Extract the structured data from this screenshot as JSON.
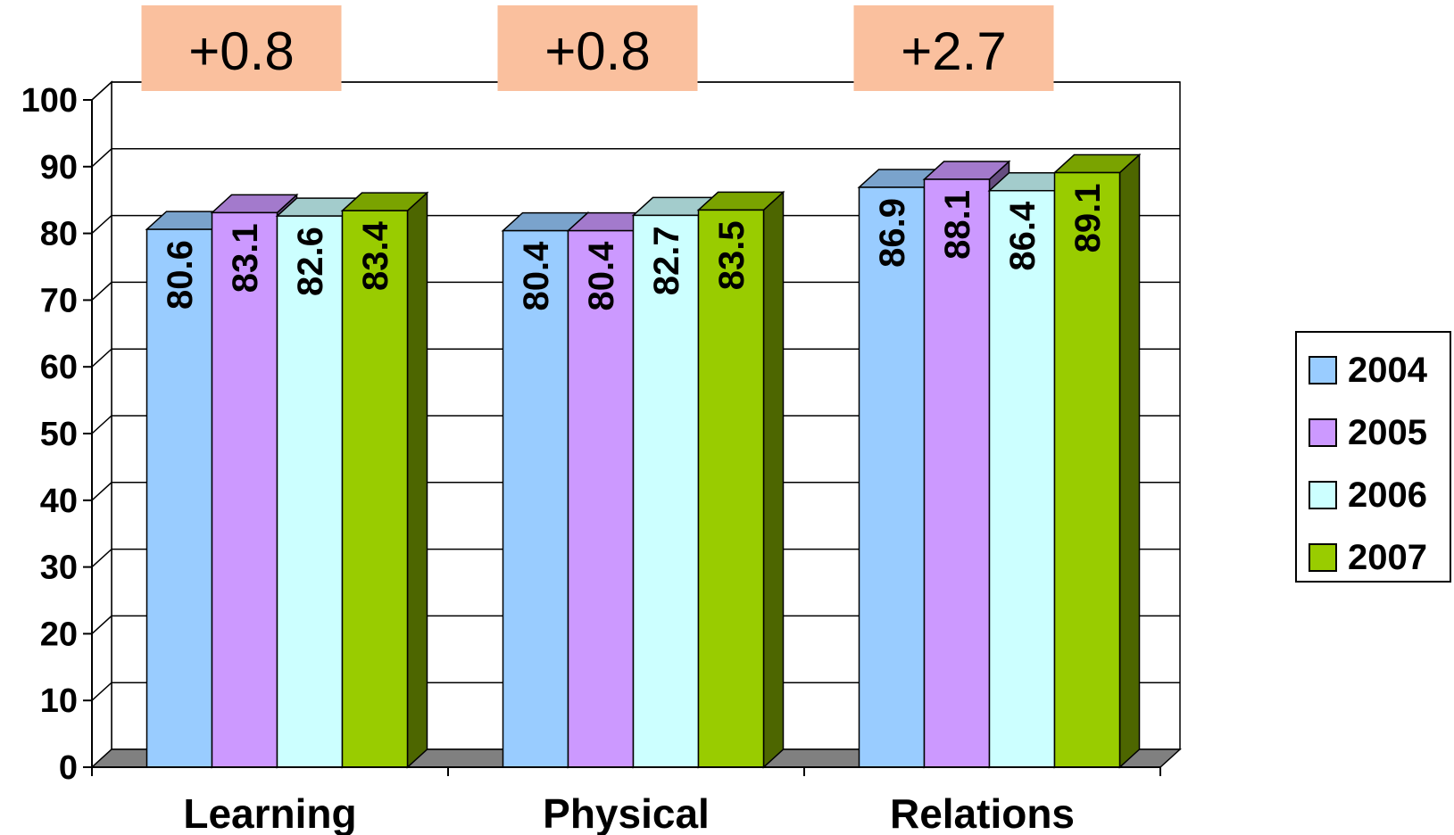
{
  "chart_data": {
    "type": "bar",
    "categories": [
      "Learning",
      "Physical",
      "Relations"
    ],
    "series": [
      {
        "name": "2004",
        "values": [
          80.6,
          80.4,
          86.9
        ]
      },
      {
        "name": "2005",
        "values": [
          83.1,
          80.4,
          88.1
        ]
      },
      {
        "name": "2006",
        "values": [
          82.6,
          82.7,
          86.4
        ]
      },
      {
        "name": "2007",
        "values": [
          83.4,
          83.5,
          89.1
        ]
      }
    ],
    "annotations": [
      "+0.8",
      "+0.8",
      "+2.7"
    ],
    "ylim": [
      0,
      100
    ],
    "yticks": [
      0,
      10,
      20,
      30,
      40,
      50,
      60,
      70,
      80,
      90,
      100
    ],
    "grid": true,
    "legend": "right",
    "title": "",
    "xlabel": "",
    "ylabel": ""
  },
  "colors": {
    "series_front": [
      "#99ccff",
      "#cc99ff",
      "#ccffff",
      "#99cc00"
    ],
    "series_top": [
      "#7aa3cc",
      "#a37acc",
      "#a3cccc",
      "#7aa300"
    ],
    "series_side": [
      "#4d6680",
      "#664d80",
      "#668080",
      "#4d6600"
    ],
    "annotation_fill": "#fac09e",
    "floor": "#808080"
  }
}
